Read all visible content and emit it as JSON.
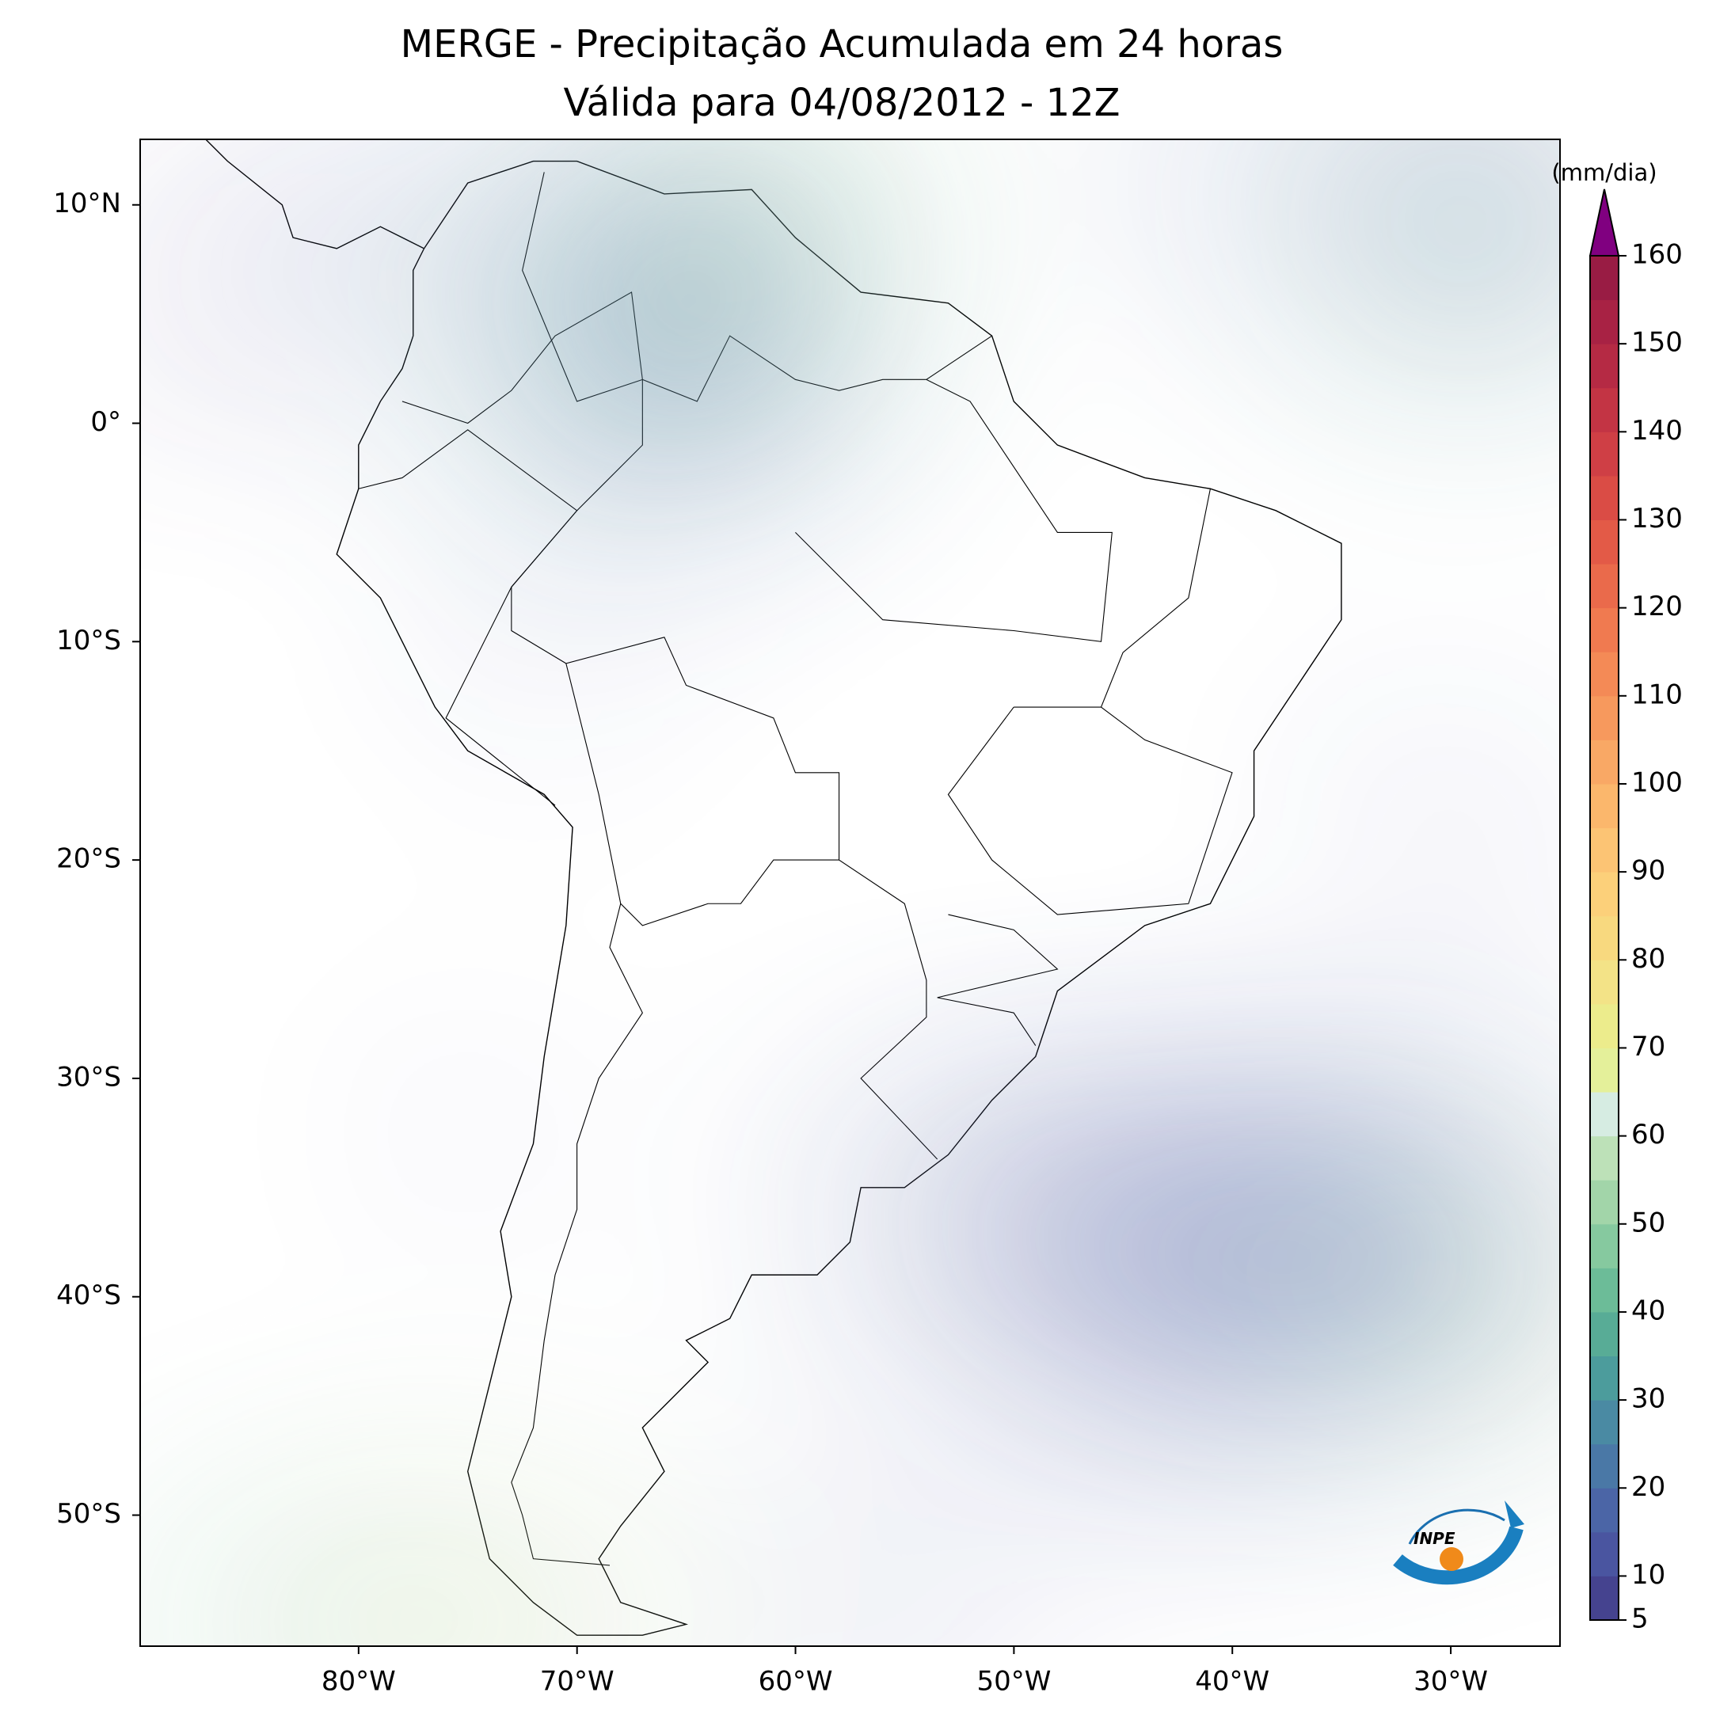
{
  "title": "MERGE - Precipitação Acumulada em 24 horas",
  "subtitle": "Válida para 04/08/2012 - 12Z",
  "map": {
    "xlim": [
      -90,
      -25
    ],
    "ylim": [
      -56,
      13
    ],
    "xticks": [
      {
        "value": -80,
        "label": "80°W"
      },
      {
        "value": -70,
        "label": "70°W"
      },
      {
        "value": -60,
        "label": "60°W"
      },
      {
        "value": -50,
        "label": "50°W"
      },
      {
        "value": -40,
        "label": "40°W"
      },
      {
        "value": -30,
        "label": "30°W"
      }
    ],
    "yticks": [
      {
        "value": 10,
        "label": "10°N"
      },
      {
        "value": 0,
        "label": "0°"
      },
      {
        "value": -10,
        "label": "10°S"
      },
      {
        "value": -20,
        "label": "20°S"
      },
      {
        "value": -30,
        "label": "30°S"
      },
      {
        "value": -40,
        "label": "40°S"
      },
      {
        "value": -50,
        "label": "50°S"
      }
    ]
  },
  "colorbar": {
    "label": "(mm/dia)",
    "lim": [
      5,
      160
    ],
    "ticks": [
      5,
      10,
      20,
      30,
      40,
      50,
      60,
      70,
      80,
      90,
      100,
      110,
      120,
      130,
      140,
      150,
      160
    ],
    "colors": [
      "#45438f",
      "#4a55a0",
      "#4b65a6",
      "#4a78a6",
      "#4a8aa3",
      "#4c9c9c",
      "#58ac96",
      "#6cbc98",
      "#86c99f",
      "#a2d5a9",
      "#bde1b8",
      "#d6ece2",
      "#e4f09a",
      "#ecec8c",
      "#f3e387",
      "#f8d97f",
      "#fcd07a",
      "#fcc474",
      "#fbb76c",
      "#f9a865",
      "#f7995d",
      "#f48a56",
      "#f07a50",
      "#ea6a4b",
      "#e35a47",
      "#da4c45",
      "#cf3f45",
      "#c33444",
      "#b52a44",
      "#a82244",
      "#991c44"
    ],
    "over_color": "#800080"
  },
  "logo": "INPE"
}
